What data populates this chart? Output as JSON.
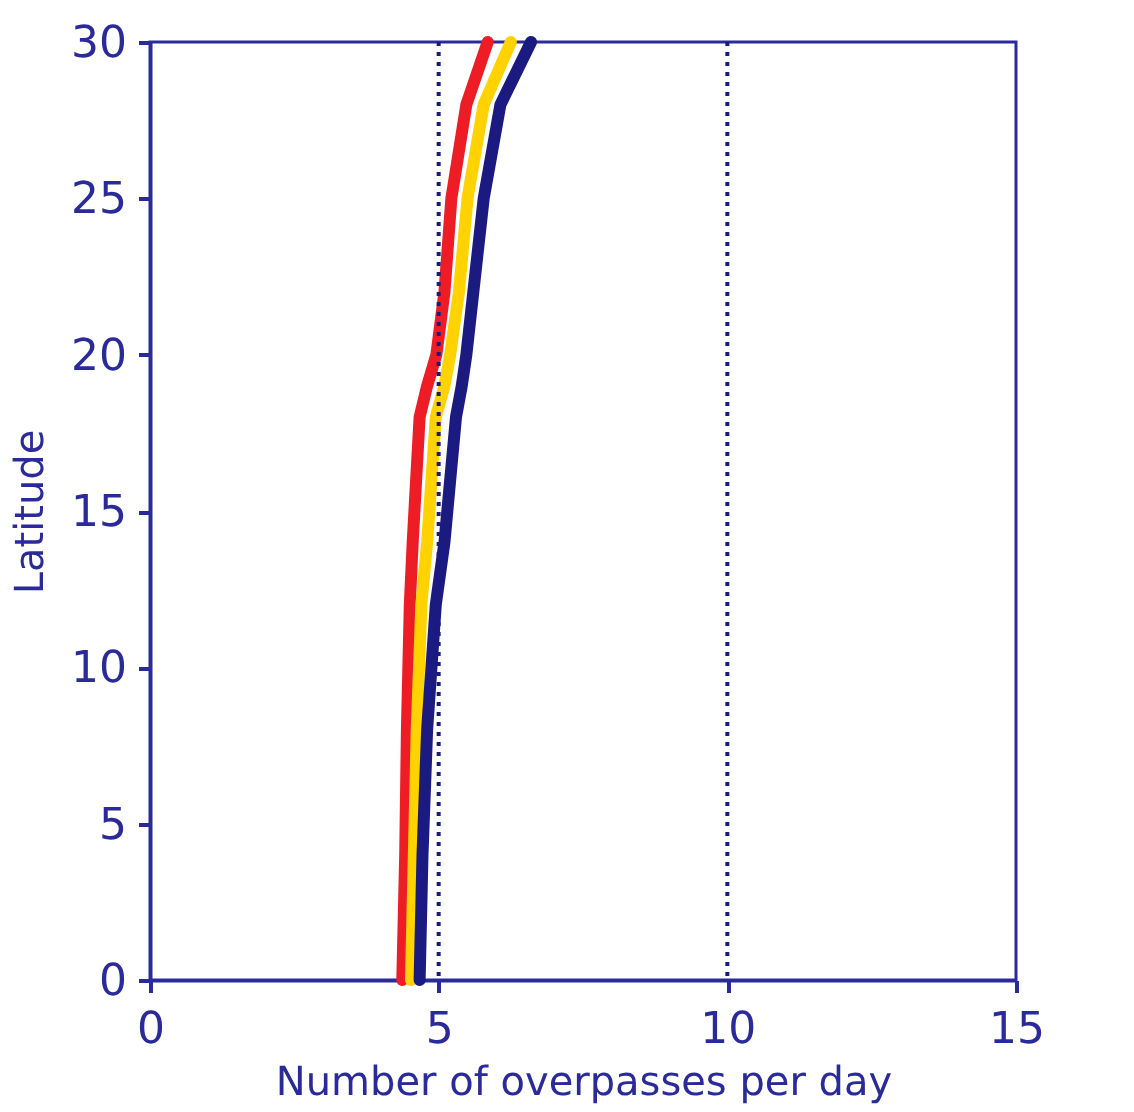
{
  "chart_data": {
    "type": "line",
    "xlabel": "Number of overpasses per day",
    "ylabel": "Latitude",
    "xlim": [
      0,
      15
    ],
    "xticks": [
      0,
      5,
      10,
      15
    ],
    "ylim": [
      0,
      30
    ],
    "yticks": [
      0,
      5,
      10,
      15,
      20,
      25,
      30
    ],
    "grid": false,
    "marker": "none",
    "line_style": "solid",
    "series": [
      {
        "color": "#ee1c25",
        "x": [
          4.37,
          4.42,
          4.45,
          4.5,
          4.55,
          4.67,
          4.8,
          4.96,
          5.1,
          5.22,
          5.48,
          5.85
        ],
        "values": [
          0,
          4,
          8,
          12,
          14,
          18,
          19,
          20,
          22,
          25,
          28,
          30
        ]
      },
      {
        "color": "#ffd200",
        "x": [
          4.52,
          4.57,
          4.62,
          4.7,
          4.8,
          4.95,
          5.1,
          5.2,
          5.35,
          5.5,
          5.78,
          6.25
        ],
        "values": [
          0,
          4,
          8,
          12,
          14,
          18,
          19,
          20,
          22,
          25,
          28,
          30
        ]
      },
      {
        "color": "#1a1a80",
        "x": [
          4.67,
          4.72,
          4.8,
          4.95,
          5.1,
          5.3,
          5.4,
          5.48,
          5.6,
          5.78,
          6.07,
          6.6
        ],
        "values": [
          0,
          4,
          8,
          12,
          14,
          18,
          19,
          20,
          22,
          25,
          28,
          30
        ]
      }
    ],
    "ref_lines": [
      {
        "axis": "x",
        "value": 5,
        "line_style": "dotted",
        "color": "#1a1a80"
      },
      {
        "axis": "x",
        "value": 10,
        "line_style": "dotted",
        "color": "#1a1a80"
      }
    ]
  }
}
